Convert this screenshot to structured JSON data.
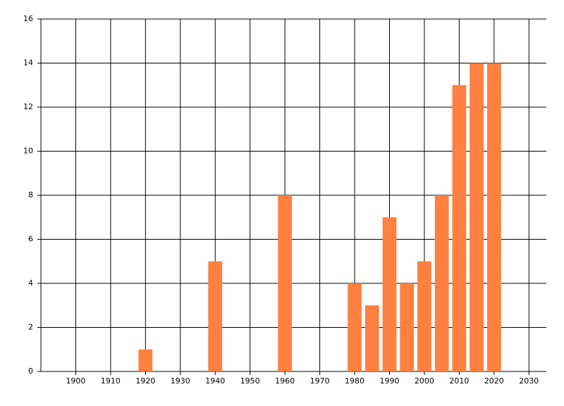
{
  "chart_data": {
    "type": "bar",
    "x": [
      1920,
      1940,
      1960,
      1980,
      1985,
      1990,
      1995,
      2000,
      2005,
      2010,
      2015,
      2020
    ],
    "values": [
      1,
      5,
      8,
      4,
      3,
      7,
      4,
      5,
      8,
      13,
      14,
      14
    ],
    "color": "#ff8040",
    "xlim": [
      1890,
      2035
    ],
    "xticks": [
      1900,
      1910,
      1920,
      1930,
      1940,
      1950,
      1960,
      1970,
      1980,
      1990,
      2000,
      2010,
      2020,
      2030
    ],
    "ylim": [
      0,
      16
    ],
    "yticks": [
      0,
      2,
      4,
      6,
      8,
      10,
      12,
      14,
      16
    ],
    "bar_width": 4,
    "grid": true
  }
}
